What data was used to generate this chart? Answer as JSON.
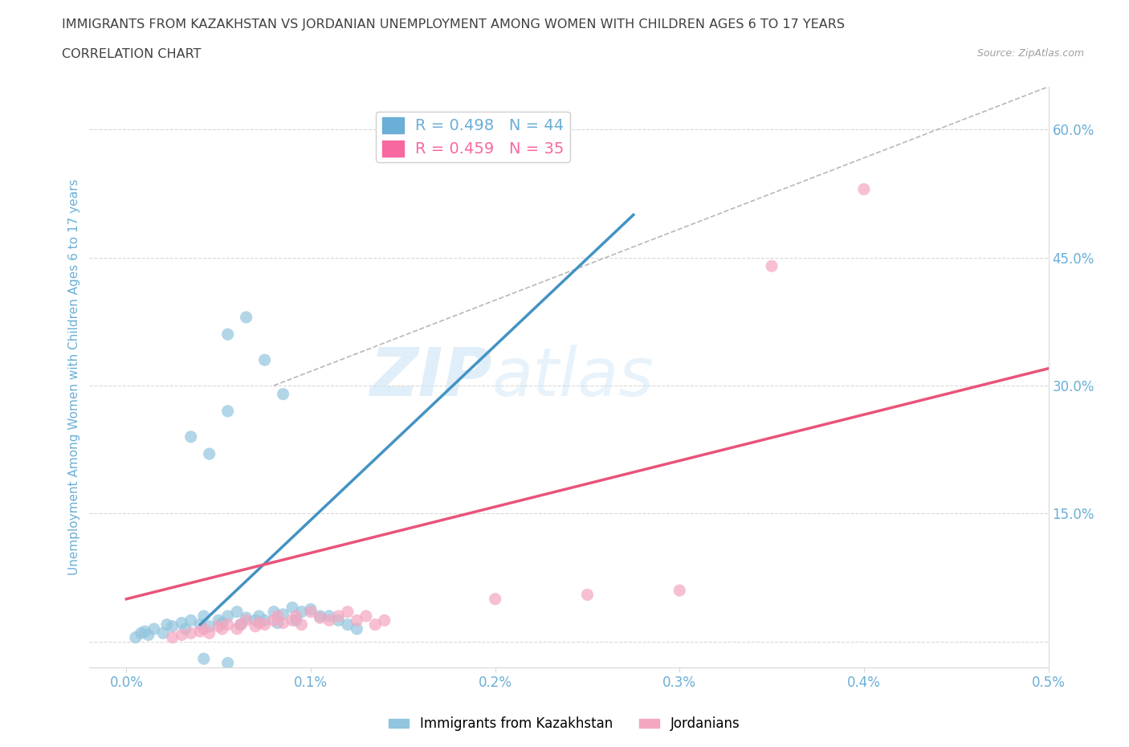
{
  "title_line1": "IMMIGRANTS FROM KAZAKHSTAN VS JORDANIAN UNEMPLOYMENT AMONG WOMEN WITH CHILDREN AGES 6 TO 17 YEARS",
  "title_line2": "CORRELATION CHART",
  "source_text": "Source: ZipAtlas.com",
  "ylabel": "Unemployment Among Women with Children Ages 6 to 17 years",
  "xlim": [
    -0.0002,
    0.005
  ],
  "ylim": [
    -0.03,
    0.65
  ],
  "xticks": [
    0.0,
    0.001,
    0.002,
    0.003,
    0.004,
    0.005
  ],
  "xticklabels": [
    "0.0%",
    "0.1%",
    "0.2%",
    "0.3%",
    "0.4%",
    "0.5%"
  ],
  "yticks": [
    0.0,
    0.15,
    0.3,
    0.45,
    0.6
  ],
  "yticklabels": [
    "",
    "15.0%",
    "30.0%",
    "45.0%",
    "60.0%"
  ],
  "legend_entries": [
    {
      "label": "R = 0.498   N = 44",
      "color": "#6baed6"
    },
    {
      "label": "R = 0.459   N = 35",
      "color": "#f768a1"
    }
  ],
  "watermark_zip": "ZIP",
  "watermark_atlas": "atlas",
  "blue_scatter": [
    [
      5e-05,
      0.005
    ],
    [
      8e-05,
      0.01
    ],
    [
      0.0001,
      0.012
    ],
    [
      0.00012,
      0.008
    ],
    [
      0.00015,
      0.015
    ],
    [
      0.0002,
      0.01
    ],
    [
      0.00022,
      0.02
    ],
    [
      0.00025,
      0.018
    ],
    [
      0.0003,
      0.022
    ],
    [
      0.00032,
      0.015
    ],
    [
      0.00035,
      0.025
    ],
    [
      0.0004,
      0.02
    ],
    [
      0.00042,
      0.03
    ],
    [
      0.00045,
      0.018
    ],
    [
      0.0005,
      0.025
    ],
    [
      0.00052,
      0.022
    ],
    [
      0.00055,
      0.03
    ],
    [
      0.0006,
      0.035
    ],
    [
      0.00062,
      0.02
    ],
    [
      0.00065,
      0.028
    ],
    [
      0.0007,
      0.025
    ],
    [
      0.00072,
      0.03
    ],
    [
      0.00075,
      0.025
    ],
    [
      0.0008,
      0.035
    ],
    [
      0.00082,
      0.022
    ],
    [
      0.00085,
      0.032
    ],
    [
      0.0009,
      0.04
    ],
    [
      0.00092,
      0.025
    ],
    [
      0.00095,
      0.035
    ],
    [
      0.001,
      0.038
    ],
    [
      0.00105,
      0.03
    ],
    [
      0.0011,
      0.03
    ],
    [
      0.00115,
      0.025
    ],
    [
      0.0012,
      0.02
    ],
    [
      0.00125,
      0.015
    ],
    [
      0.00055,
      0.36
    ],
    [
      0.00065,
      0.38
    ],
    [
      0.00075,
      0.33
    ],
    [
      0.00085,
      0.29
    ],
    [
      0.00035,
      0.24
    ],
    [
      0.00045,
      0.22
    ],
    [
      0.00055,
      0.27
    ],
    [
      0.00042,
      -0.02
    ],
    [
      0.00055,
      -0.025
    ]
  ],
  "pink_scatter": [
    [
      0.00025,
      0.005
    ],
    [
      0.0003,
      0.008
    ],
    [
      0.00035,
      0.01
    ],
    [
      0.0004,
      0.012
    ],
    [
      0.00042,
      0.015
    ],
    [
      0.00045,
      0.01
    ],
    [
      0.0005,
      0.018
    ],
    [
      0.00052,
      0.015
    ],
    [
      0.00055,
      0.02
    ],
    [
      0.0006,
      0.015
    ],
    [
      0.00062,
      0.02
    ],
    [
      0.00065,
      0.025
    ],
    [
      0.0007,
      0.018
    ],
    [
      0.00072,
      0.022
    ],
    [
      0.00075,
      0.02
    ],
    [
      0.0008,
      0.025
    ],
    [
      0.00082,
      0.03
    ],
    [
      0.00085,
      0.022
    ],
    [
      0.0009,
      0.025
    ],
    [
      0.00092,
      0.03
    ],
    [
      0.00095,
      0.02
    ],
    [
      0.001,
      0.035
    ],
    [
      0.00105,
      0.028
    ],
    [
      0.0011,
      0.025
    ],
    [
      0.00115,
      0.03
    ],
    [
      0.0012,
      0.035
    ],
    [
      0.00125,
      0.025
    ],
    [
      0.0013,
      0.03
    ],
    [
      0.00135,
      0.02
    ],
    [
      0.0014,
      0.025
    ],
    [
      0.002,
      0.05
    ],
    [
      0.0025,
      0.055
    ],
    [
      0.003,
      0.06
    ],
    [
      0.0035,
      0.44
    ],
    [
      0.004,
      0.53
    ]
  ],
  "blue_line_x": [
    0.0004,
    0.00275
  ],
  "blue_line_y": [
    0.02,
    0.5
  ],
  "pink_line_x": [
    0.0,
    0.005
  ],
  "pink_line_y": [
    0.05,
    0.32
  ],
  "dashed_line_x": [
    0.0008,
    0.005
  ],
  "dashed_line_y": [
    0.3,
    0.65
  ],
  "scatter_blue_color": "#92c5de",
  "scatter_pink_color": "#f4a6c0",
  "line_blue_color": "#4393c3",
  "line_pink_color": "#e8547a",
  "dashed_line_color": "#b8b8b8",
  "grid_color": "#d8d8d8",
  "title_color": "#404040",
  "axis_label_color": "#6baed6",
  "tick_label_color": "#6baed6",
  "background_color": "#ffffff"
}
